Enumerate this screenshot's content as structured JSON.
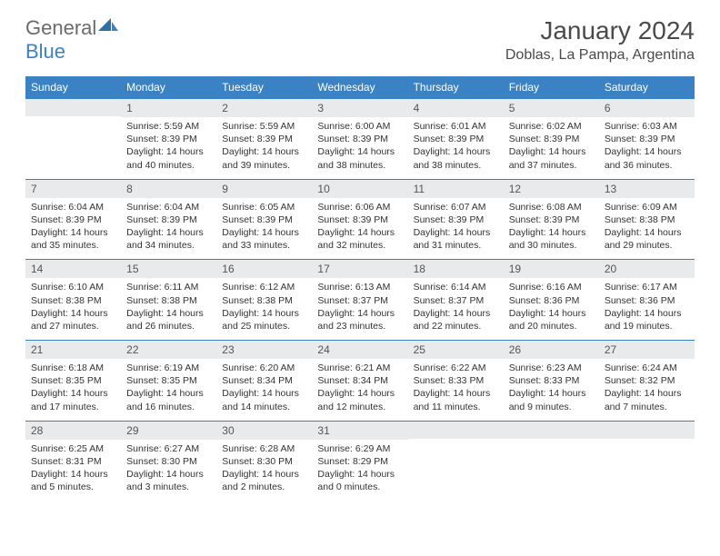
{
  "brand": {
    "part1": "General",
    "part2": "Blue"
  },
  "title": "January 2024",
  "location": "Doblas, La Pampa, Argentina",
  "colors": {
    "header_bg": "#3b82c4",
    "daynum_bg": "#e9eaeb",
    "text": "#333333",
    "brand_gray": "#6b6b6b"
  },
  "dow": [
    "Sunday",
    "Monday",
    "Tuesday",
    "Wednesday",
    "Thursday",
    "Friday",
    "Saturday"
  ],
  "weeks": [
    [
      {
        "n": "",
        "lines": []
      },
      {
        "n": "1",
        "lines": [
          "Sunrise: 5:59 AM",
          "Sunset: 8:39 PM",
          "Daylight: 14 hours",
          "and 40 minutes."
        ]
      },
      {
        "n": "2",
        "lines": [
          "Sunrise: 5:59 AM",
          "Sunset: 8:39 PM",
          "Daylight: 14 hours",
          "and 39 minutes."
        ]
      },
      {
        "n": "3",
        "lines": [
          "Sunrise: 6:00 AM",
          "Sunset: 8:39 PM",
          "Daylight: 14 hours",
          "and 38 minutes."
        ]
      },
      {
        "n": "4",
        "lines": [
          "Sunrise: 6:01 AM",
          "Sunset: 8:39 PM",
          "Daylight: 14 hours",
          "and 38 minutes."
        ]
      },
      {
        "n": "5",
        "lines": [
          "Sunrise: 6:02 AM",
          "Sunset: 8:39 PM",
          "Daylight: 14 hours",
          "and 37 minutes."
        ]
      },
      {
        "n": "6",
        "lines": [
          "Sunrise: 6:03 AM",
          "Sunset: 8:39 PM",
          "Daylight: 14 hours",
          "and 36 minutes."
        ]
      }
    ],
    [
      {
        "n": "7",
        "lines": [
          "Sunrise: 6:04 AM",
          "Sunset: 8:39 PM",
          "Daylight: 14 hours",
          "and 35 minutes."
        ]
      },
      {
        "n": "8",
        "lines": [
          "Sunrise: 6:04 AM",
          "Sunset: 8:39 PM",
          "Daylight: 14 hours",
          "and 34 minutes."
        ]
      },
      {
        "n": "9",
        "lines": [
          "Sunrise: 6:05 AM",
          "Sunset: 8:39 PM",
          "Daylight: 14 hours",
          "and 33 minutes."
        ]
      },
      {
        "n": "10",
        "lines": [
          "Sunrise: 6:06 AM",
          "Sunset: 8:39 PM",
          "Daylight: 14 hours",
          "and 32 minutes."
        ]
      },
      {
        "n": "11",
        "lines": [
          "Sunrise: 6:07 AM",
          "Sunset: 8:39 PM",
          "Daylight: 14 hours",
          "and 31 minutes."
        ]
      },
      {
        "n": "12",
        "lines": [
          "Sunrise: 6:08 AM",
          "Sunset: 8:39 PM",
          "Daylight: 14 hours",
          "and 30 minutes."
        ]
      },
      {
        "n": "13",
        "lines": [
          "Sunrise: 6:09 AM",
          "Sunset: 8:38 PM",
          "Daylight: 14 hours",
          "and 29 minutes."
        ]
      }
    ],
    [
      {
        "n": "14",
        "lines": [
          "Sunrise: 6:10 AM",
          "Sunset: 8:38 PM",
          "Daylight: 14 hours",
          "and 27 minutes."
        ]
      },
      {
        "n": "15",
        "lines": [
          "Sunrise: 6:11 AM",
          "Sunset: 8:38 PM",
          "Daylight: 14 hours",
          "and 26 minutes."
        ]
      },
      {
        "n": "16",
        "lines": [
          "Sunrise: 6:12 AM",
          "Sunset: 8:38 PM",
          "Daylight: 14 hours",
          "and 25 minutes."
        ]
      },
      {
        "n": "17",
        "lines": [
          "Sunrise: 6:13 AM",
          "Sunset: 8:37 PM",
          "Daylight: 14 hours",
          "and 23 minutes."
        ]
      },
      {
        "n": "18",
        "lines": [
          "Sunrise: 6:14 AM",
          "Sunset: 8:37 PM",
          "Daylight: 14 hours",
          "and 22 minutes."
        ]
      },
      {
        "n": "19",
        "lines": [
          "Sunrise: 6:16 AM",
          "Sunset: 8:36 PM",
          "Daylight: 14 hours",
          "and 20 minutes."
        ]
      },
      {
        "n": "20",
        "lines": [
          "Sunrise: 6:17 AM",
          "Sunset: 8:36 PM",
          "Daylight: 14 hours",
          "and 19 minutes."
        ]
      }
    ],
    [
      {
        "n": "21",
        "lines": [
          "Sunrise: 6:18 AM",
          "Sunset: 8:35 PM",
          "Daylight: 14 hours",
          "and 17 minutes."
        ]
      },
      {
        "n": "22",
        "lines": [
          "Sunrise: 6:19 AM",
          "Sunset: 8:35 PM",
          "Daylight: 14 hours",
          "and 16 minutes."
        ]
      },
      {
        "n": "23",
        "lines": [
          "Sunrise: 6:20 AM",
          "Sunset: 8:34 PM",
          "Daylight: 14 hours",
          "and 14 minutes."
        ]
      },
      {
        "n": "24",
        "lines": [
          "Sunrise: 6:21 AM",
          "Sunset: 8:34 PM",
          "Daylight: 14 hours",
          "and 12 minutes."
        ]
      },
      {
        "n": "25",
        "lines": [
          "Sunrise: 6:22 AM",
          "Sunset: 8:33 PM",
          "Daylight: 14 hours",
          "and 11 minutes."
        ]
      },
      {
        "n": "26",
        "lines": [
          "Sunrise: 6:23 AM",
          "Sunset: 8:33 PM",
          "Daylight: 14 hours",
          "and 9 minutes."
        ]
      },
      {
        "n": "27",
        "lines": [
          "Sunrise: 6:24 AM",
          "Sunset: 8:32 PM",
          "Daylight: 14 hours",
          "and 7 minutes."
        ]
      }
    ],
    [
      {
        "n": "28",
        "lines": [
          "Sunrise: 6:25 AM",
          "Sunset: 8:31 PM",
          "Daylight: 14 hours",
          "and 5 minutes."
        ]
      },
      {
        "n": "29",
        "lines": [
          "Sunrise: 6:27 AM",
          "Sunset: 8:30 PM",
          "Daylight: 14 hours",
          "and 3 minutes."
        ]
      },
      {
        "n": "30",
        "lines": [
          "Sunrise: 6:28 AM",
          "Sunset: 8:30 PM",
          "Daylight: 14 hours",
          "and 2 minutes."
        ]
      },
      {
        "n": "31",
        "lines": [
          "Sunrise: 6:29 AM",
          "Sunset: 8:29 PM",
          "Daylight: 14 hours",
          "and 0 minutes."
        ]
      },
      {
        "n": "",
        "lines": []
      },
      {
        "n": "",
        "lines": []
      },
      {
        "n": "",
        "lines": []
      }
    ]
  ]
}
